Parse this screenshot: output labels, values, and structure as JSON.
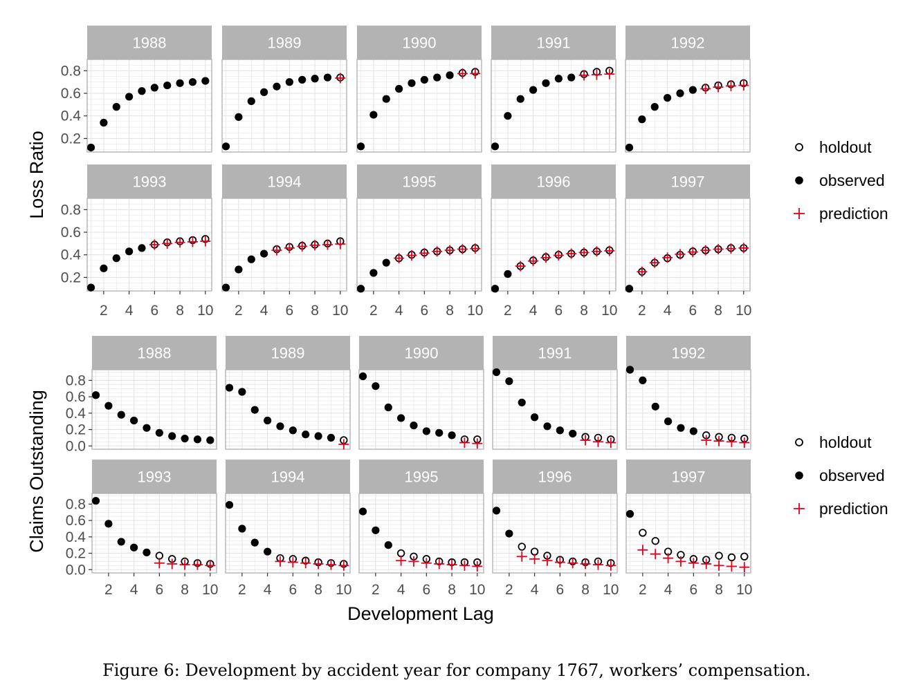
{
  "caption": "Figure 6:   Development by accident year for company 1767, workers’ compensation.",
  "colors": {
    "observed": "#000000",
    "holdout": "#000000",
    "prediction": "#e0001b",
    "strip": "#b3b3b3",
    "grid": "#e3e3e3"
  },
  "legend": {
    "items": [
      {
        "key": "holdout",
        "label": "holdout",
        "marker": "open-circle"
      },
      {
        "key": "observed",
        "label": "observed",
        "marker": "filled-circle"
      },
      {
        "key": "prediction",
        "label": "prediction",
        "marker": "plus"
      }
    ]
  },
  "chart_data": [
    {
      "type": "scatter",
      "ylabel": "Loss Ratio",
      "xlabel": "",
      "xlim": [
        0.7,
        10.5
      ],
      "ylim": [
        0.08,
        0.9
      ],
      "xticks": [
        2,
        4,
        6,
        8,
        10
      ],
      "xtick_labels": [
        "2",
        "4",
        "6",
        "8",
        "10"
      ],
      "yticks": [
        0.2,
        0.4,
        0.6,
        0.8
      ],
      "ytick_labels": [
        "0.2",
        "0.4",
        "0.6",
        "0.8"
      ],
      "grid": true,
      "legend_position": "right",
      "panels": [
        {
          "year": "1988",
          "observed": [
            0.12,
            0.34,
            0.48,
            0.57,
            0.62,
            0.65,
            0.67,
            0.69,
            0.7,
            0.71
          ],
          "holdout": [],
          "prediction": []
        },
        {
          "year": "1989",
          "observed": [
            0.13,
            0.39,
            0.53,
            0.61,
            0.66,
            0.7,
            0.72,
            0.73,
            0.74
          ],
          "holdout": [
            0.74
          ],
          "prediction": [
            0.735
          ]
        },
        {
          "year": "1990",
          "observed": [
            0.13,
            0.41,
            0.55,
            0.64,
            0.69,
            0.72,
            0.74,
            0.76
          ],
          "holdout": [
            0.78,
            0.79
          ],
          "prediction": [
            0.775,
            0.775
          ]
        },
        {
          "year": "1991",
          "observed": [
            0.13,
            0.4,
            0.55,
            0.63,
            0.69,
            0.73,
            0.74
          ],
          "holdout": [
            0.77,
            0.79,
            0.8
          ],
          "prediction": [
            0.76,
            0.765,
            0.77
          ]
        },
        {
          "year": "1992",
          "observed": [
            0.12,
            0.37,
            0.48,
            0.56,
            0.6,
            0.63
          ],
          "holdout": [
            0.65,
            0.67,
            0.68,
            0.69
          ],
          "prediction": [
            0.64,
            0.655,
            0.665,
            0.67
          ]
        },
        {
          "year": "1993",
          "observed": [
            0.11,
            0.28,
            0.37,
            0.43,
            0.46
          ],
          "holdout": [
            0.49,
            0.51,
            0.52,
            0.53,
            0.54
          ],
          "prediction": [
            0.49,
            0.5,
            0.51,
            0.515,
            0.52
          ]
        },
        {
          "year": "1994",
          "observed": [
            0.11,
            0.27,
            0.36,
            0.41
          ],
          "holdout": [
            0.45,
            0.47,
            0.48,
            0.49,
            0.5,
            0.52
          ],
          "prediction": [
            0.44,
            0.46,
            0.475,
            0.485,
            0.49,
            0.495
          ]
        },
        {
          "year": "1995",
          "observed": [
            0.1,
            0.24,
            0.33
          ],
          "holdout": [
            0.37,
            0.4,
            0.42,
            0.43,
            0.44,
            0.45,
            0.46
          ],
          "prediction": [
            0.37,
            0.395,
            0.415,
            0.43,
            0.44,
            0.45,
            0.455
          ]
        },
        {
          "year": "1996",
          "observed": [
            0.1,
            0.23
          ],
          "holdout": [
            0.3,
            0.35,
            0.38,
            0.4,
            0.41,
            0.42,
            0.43,
            0.44
          ],
          "prediction": [
            0.3,
            0.345,
            0.375,
            0.395,
            0.41,
            0.42,
            0.43,
            0.435
          ]
        },
        {
          "year": "1997",
          "observed": [
            0.1
          ],
          "holdout": [
            0.25,
            0.33,
            0.37,
            0.4,
            0.43,
            0.44,
            0.45,
            0.46,
            0.46
          ],
          "prediction": [
            0.25,
            0.33,
            0.375,
            0.405,
            0.425,
            0.44,
            0.45,
            0.455,
            0.46
          ]
        }
      ]
    },
    {
      "type": "scatter",
      "ylabel": "Claims Outstanding",
      "xlabel": "Development Lag",
      "xlim": [
        0.7,
        10.5
      ],
      "ylim": [
        -0.04,
        0.93
      ],
      "xticks": [
        2,
        4,
        6,
        8,
        10
      ],
      "xtick_labels": [
        "2",
        "4",
        "6",
        "8",
        "10"
      ],
      "yticks": [
        0.0,
        0.2,
        0.4,
        0.6,
        0.8
      ],
      "ytick_labels": [
        "0.0",
        "0.2",
        "0.4",
        "0.6",
        "0.8"
      ],
      "grid": true,
      "legend_position": "right",
      "panels": [
        {
          "year": "1988",
          "observed": [
            0.62,
            0.49,
            0.38,
            0.31,
            0.22,
            0.16,
            0.12,
            0.09,
            0.08,
            0.07
          ],
          "holdout": [],
          "prediction": []
        },
        {
          "year": "1989",
          "observed": [
            0.71,
            0.66,
            0.44,
            0.31,
            0.24,
            0.19,
            0.14,
            0.12,
            0.1
          ],
          "holdout": [
            0.07
          ],
          "prediction": [
            0.02
          ]
        },
        {
          "year": "1990",
          "observed": [
            0.85,
            0.73,
            0.47,
            0.34,
            0.25,
            0.18,
            0.16,
            0.13
          ],
          "holdout": [
            0.08,
            0.08
          ],
          "prediction": [
            0.04,
            0.03
          ]
        },
        {
          "year": "1991",
          "observed": [
            0.9,
            0.79,
            0.53,
            0.35,
            0.24,
            0.19,
            0.15
          ],
          "holdout": [
            0.11,
            0.1,
            0.08
          ],
          "prediction": [
            0.07,
            0.05,
            0.04
          ]
        },
        {
          "year": "1992",
          "observed": [
            0.93,
            0.8,
            0.48,
            0.3,
            0.22,
            0.18
          ],
          "holdout": [
            0.13,
            0.11,
            0.1,
            0.09
          ],
          "prediction": [
            0.07,
            0.06,
            0.05,
            0.04
          ]
        },
        {
          "year": "1993",
          "observed": [
            0.84,
            0.56,
            0.34,
            0.27,
            0.21
          ],
          "holdout": [
            0.17,
            0.13,
            0.1,
            0.08,
            0.07
          ],
          "prediction": [
            0.08,
            0.07,
            0.06,
            0.06,
            0.05
          ]
        },
        {
          "year": "1994",
          "observed": [
            0.79,
            0.5,
            0.33,
            0.22
          ],
          "holdout": [
            0.14,
            0.13,
            0.11,
            0.09,
            0.08,
            0.07
          ],
          "prediction": [
            0.1,
            0.09,
            0.08,
            0.07,
            0.06,
            0.05
          ]
        },
        {
          "year": "1995",
          "observed": [
            0.71,
            0.48,
            0.3
          ],
          "holdout": [
            0.2,
            0.16,
            0.13,
            0.1,
            0.09,
            0.09,
            0.09
          ],
          "prediction": [
            0.11,
            0.1,
            0.08,
            0.07,
            0.06,
            0.05,
            0.04
          ]
        },
        {
          "year": "1996",
          "observed": [
            0.72,
            0.44
          ],
          "holdout": [
            0.28,
            0.22,
            0.17,
            0.12,
            0.1,
            0.09,
            0.1,
            0.08
          ],
          "prediction": [
            0.16,
            0.13,
            0.11,
            0.09,
            0.08,
            0.07,
            0.06,
            0.05
          ]
        },
        {
          "year": "1997",
          "observed": [
            0.68
          ],
          "holdout": [
            0.45,
            0.35,
            0.22,
            0.18,
            0.13,
            0.12,
            0.17,
            0.15,
            0.16
          ],
          "prediction": [
            0.24,
            0.19,
            0.14,
            0.1,
            0.08,
            0.07,
            0.05,
            0.04,
            0.03
          ]
        }
      ]
    }
  ]
}
